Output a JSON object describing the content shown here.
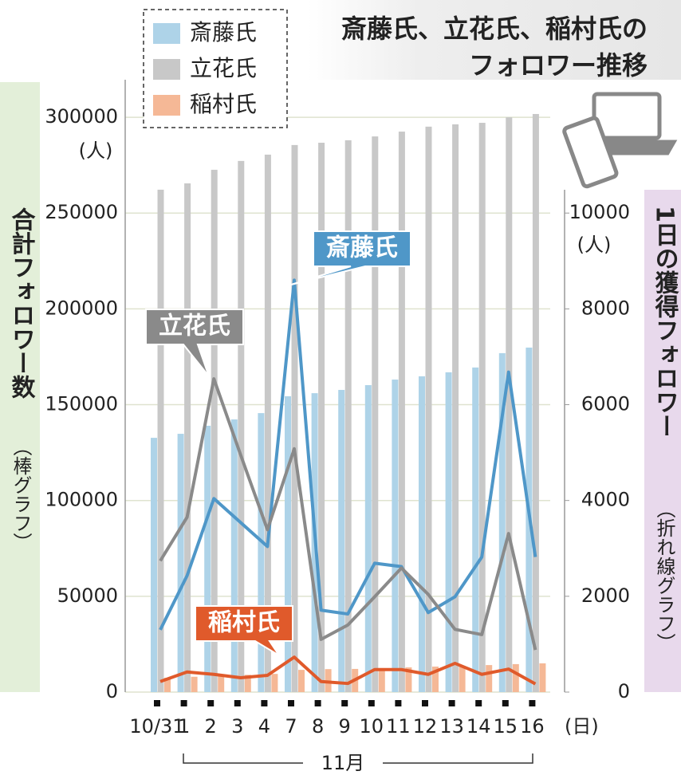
{
  "chart_data": {
    "type": "bar",
    "title": [
      "斎藤氏、立花氏、稲村氏の",
      "フォロワー推移"
    ],
    "categories": [
      "10/31",
      "1",
      "2",
      "3",
      "4",
      "7",
      "8",
      "9",
      "10",
      "11",
      "12",
      "13",
      "14",
      "15",
      "16"
    ],
    "x_unit": "(日)",
    "x_group_label": "11月",
    "y_label": "合計フォロワー数",
    "y_label_note": "（棒グラフ）",
    "y_unit": "(人)",
    "y2_label": "1日の獲得フォロワー",
    "y2_label_note": "（折れ線グラフ）",
    "y2_unit": "(人)",
    "ylim": [
      0,
      320000
    ],
    "yticks": [
      0,
      50000,
      100000,
      150000,
      200000,
      250000,
      300000
    ],
    "y2lim": [
      0,
      12800
    ],
    "y2ticks": [
      0,
      2000,
      4000,
      6000,
      8000,
      10000
    ],
    "grid": true,
    "series": [
      {
        "name": "斎藤氏",
        "type": "bar",
        "color": "#aed3e8",
        "values": [
          132700,
          134800,
          139000,
          142300,
          145600,
          154400,
          156000,
          157700,
          160200,
          163100,
          164800,
          166900,
          169400,
          176900,
          179800
        ]
      },
      {
        "name": "立花氏",
        "type": "bar",
        "color": "#c8c8c8",
        "values": [
          262200,
          265500,
          272600,
          277200,
          280500,
          285500,
          286700,
          288000,
          290000,
          292500,
          295100,
          296300,
          297100,
          300000,
          301700
        ]
      },
      {
        "name": "稲村氏",
        "type": "bar",
        "color": "#f5b896",
        "values": [
          7500,
          8000,
          8300,
          9000,
          9500,
          11600,
          12000,
          12100,
          12500,
          12900,
          13300,
          13700,
          14100,
          14600,
          15000
        ]
      },
      {
        "name": "斎藤氏",
        "type": "line",
        "axis": "y2",
        "color": "#4f97c8",
        "values": [
          1300,
          2430,
          4040,
          3540,
          3040,
          8600,
          1710,
          1630,
          2690,
          2620,
          1660,
          1990,
          2820,
          6680,
          2820
        ]
      },
      {
        "name": "立花氏",
        "type": "line",
        "axis": "y2",
        "color": "#8a8a8a",
        "values": [
          2740,
          3650,
          6540,
          4950,
          3390,
          5080,
          1100,
          1400,
          1990,
          2590,
          2040,
          1310,
          1200,
          3310,
          880
        ]
      },
      {
        "name": "稲村氏",
        "type": "line",
        "axis": "y2",
        "color": "#e05a2b",
        "values": [
          220,
          420,
          370,
          300,
          350,
          730,
          220,
          180,
          470,
          470,
          370,
          600,
          370,
          480,
          170
        ]
      }
    ]
  }
}
